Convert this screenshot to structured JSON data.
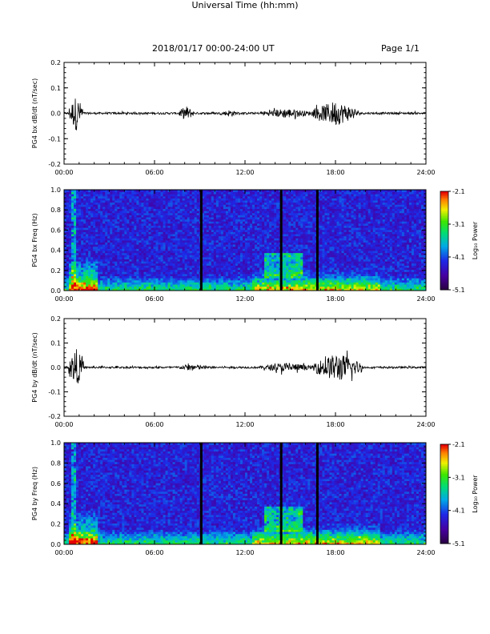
{
  "header": {
    "title": "2018/01/17  00:00-24:00 UT",
    "page": "Page 1/1"
  },
  "xlabel": "Universal Time (hh:mm)",
  "colorbar": {
    "ticks": [
      "-2.1",
      "-3.1",
      "-4.1",
      "-5.1"
    ],
    "label": "Log₁₀ Power"
  },
  "chart_data": [
    {
      "type": "line",
      "ylabel": "PG4 bx dB/dt (nT/sec)",
      "xlim": [
        0,
        24
      ],
      "ylim": [
        -0.2,
        0.2
      ],
      "xticks": [
        "00:00",
        "06:00",
        "12:00",
        "18:00",
        "24:00"
      ],
      "yticks": [
        "0.2",
        "0.1",
        "0.0",
        "-0.1",
        "-0.2"
      ],
      "activity": [
        {
          "t_start": 0.3,
          "t_end": 1.3,
          "amplitude": 0.07
        },
        {
          "t_start": 7.6,
          "t_end": 8.6,
          "amplitude": 0.03
        },
        {
          "t_start": 10.5,
          "t_end": 11.5,
          "amplitude": 0.015
        },
        {
          "t_start": 13.0,
          "t_end": 16.5,
          "amplitude": 0.02
        },
        {
          "t_start": 16.5,
          "t_end": 19.5,
          "amplitude": 0.05
        }
      ]
    },
    {
      "type": "heatmap",
      "ylabel": "PG4 bx Freq (Hz)",
      "xlim": [
        0,
        24
      ],
      "ylim": [
        0.0,
        1.0
      ],
      "xticks": [
        "00:00",
        "06:00",
        "12:00",
        "18:00",
        "24:00"
      ],
      "yticks": [
        "1.0",
        "0.8",
        "0.6",
        "0.4",
        "0.2",
        "0.0"
      ],
      "zlim": [
        -5.1,
        -2.1
      ],
      "gaps_hours": [
        9.1,
        14.4,
        16.8
      ]
    },
    {
      "type": "line",
      "ylabel": "PG4 by dB/dt (nT/sec)",
      "xlim": [
        0,
        24
      ],
      "ylim": [
        -0.2,
        0.2
      ],
      "xticks": [
        "00:00",
        "06:00",
        "12:00",
        "18:00",
        "24:00"
      ],
      "yticks": [
        "0.2",
        "0.1",
        "0.0",
        "-0.1",
        "-0.2"
      ],
      "activity": [
        {
          "t_start": 0.3,
          "t_end": 1.3,
          "amplitude": 0.08
        },
        {
          "t_start": 7.5,
          "t_end": 9.5,
          "amplitude": 0.015
        },
        {
          "t_start": 13.0,
          "t_end": 16.5,
          "amplitude": 0.02
        },
        {
          "t_start": 16.5,
          "t_end": 19.8,
          "amplitude": 0.06
        }
      ]
    },
    {
      "type": "heatmap",
      "ylabel": "PG4 by Freq (Hz)",
      "xlim": [
        0,
        24
      ],
      "ylim": [
        0.0,
        1.0
      ],
      "xticks": [
        "00:00",
        "06:00",
        "12:00",
        "18:00",
        "24:00"
      ],
      "yticks": [
        "1.0",
        "0.8",
        "0.6",
        "0.4",
        "0.2",
        "0.0"
      ],
      "zlim": [
        -5.1,
        -2.1
      ],
      "gaps_hours": [
        9.1,
        14.4,
        16.8
      ]
    }
  ]
}
